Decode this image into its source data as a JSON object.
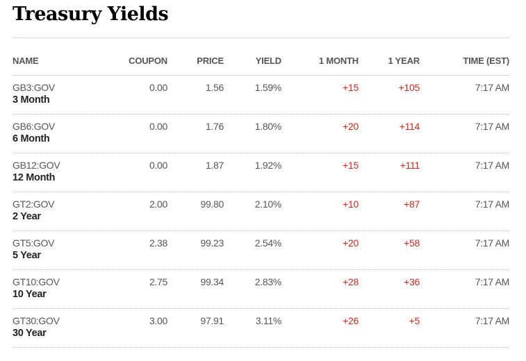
{
  "page": {
    "title": "Treasury Yields"
  },
  "colors": {
    "positive_change": "#e2231a",
    "text": "#555555",
    "rule": "#d6d6d6"
  },
  "table": {
    "columns": {
      "name": "NAME",
      "coupon": "COUPON",
      "price": "PRICE",
      "yield": "YIELD",
      "one_month": "1 MONTH",
      "one_year": "1 YEAR",
      "time": "TIME (EST)"
    },
    "rows": [
      {
        "ticker": "GB3:GOV",
        "term": "3 Month",
        "coupon": "0.00",
        "price": "1.56",
        "yield": "1.59%",
        "one_month": "+15",
        "one_year": "+105",
        "time": "7:17 AM"
      },
      {
        "ticker": "GB6:GOV",
        "term": "6 Month",
        "coupon": "0.00",
        "price": "1.76",
        "yield": "1.80%",
        "one_month": "+20",
        "one_year": "+114",
        "time": "7:17 AM"
      },
      {
        "ticker": "GB12:GOV",
        "term": "12 Month",
        "coupon": "0.00",
        "price": "1.87",
        "yield": "1.92%",
        "one_month": "+15",
        "one_year": "+111",
        "time": "7:17 AM"
      },
      {
        "ticker": "GT2:GOV",
        "term": "2 Year",
        "coupon": "2.00",
        "price": "99.80",
        "yield": "2.10%",
        "one_month": "+10",
        "one_year": "+87",
        "time": "7:17 AM"
      },
      {
        "ticker": "GT5:GOV",
        "term": "5 Year",
        "coupon": "2.38",
        "price": "99.23",
        "yield": "2.54%",
        "one_month": "+20",
        "one_year": "+58",
        "time": "7:17 AM"
      },
      {
        "ticker": "GT10:GOV",
        "term": "10 Year",
        "coupon": "2.75",
        "price": "99.34",
        "yield": "2.83%",
        "one_month": "+28",
        "one_year": "+36",
        "time": "7:17 AM"
      },
      {
        "ticker": "GT30:GOV",
        "term": "30 Year",
        "coupon": "3.00",
        "price": "97.91",
        "yield": "3.11%",
        "one_month": "+26",
        "one_year": "+5",
        "time": "7:17 AM"
      }
    ]
  }
}
